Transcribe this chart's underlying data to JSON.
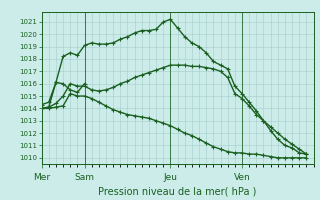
{
  "bg_color": "#ccecea",
  "grid_color": "#a4ccc8",
  "line_color": "#1a6020",
  "title": "Pression niveau de la mer( hPa )",
  "ymin": 1009.5,
  "ymax": 1021.8,
  "ytick_vals": [
    1010,
    1011,
    1012,
    1013,
    1014,
    1015,
    1016,
    1017,
    1018,
    1019,
    1020,
    1021
  ],
  "day_labels": [
    "Mer",
    "Sam",
    "Jeu",
    "Ven"
  ],
  "day_positions": [
    0,
    3,
    9,
    14
  ],
  "xmin": 0,
  "xmax": 19,
  "curve1_x": [
    0,
    0.5,
    1,
    1.5,
    2,
    2.5,
    3,
    3.5,
    4,
    4.5,
    5,
    5.5,
    6,
    6.5,
    7,
    7.5,
    8,
    8.5,
    9,
    9.5,
    10,
    10.5,
    11,
    11.5,
    12,
    12.5,
    13,
    13.5,
    14,
    14.5,
    15,
    15.5,
    16,
    16.5,
    17,
    17.5,
    18,
    18.5
  ],
  "curve1_y": [
    1014.0,
    1014.1,
    1016.1,
    1018.2,
    1018.5,
    1018.3,
    1019.1,
    1019.3,
    1019.2,
    1019.2,
    1019.3,
    1019.6,
    1019.8,
    1020.1,
    1020.3,
    1020.3,
    1020.4,
    1021.0,
    1021.2,
    1020.5,
    1019.8,
    1019.3,
    1019.0,
    1018.5,
    1017.8,
    1017.5,
    1017.2,
    1015.8,
    1015.2,
    1014.5,
    1013.8,
    1013.0,
    1012.2,
    1011.5,
    1011.0,
    1010.8,
    1010.4,
    1010.3
  ],
  "curve2_x": [
    0,
    0.5,
    1,
    1.5,
    2,
    2.5,
    3,
    3.5,
    4,
    4.5,
    5,
    5.5,
    6,
    6.5,
    7,
    7.5,
    8,
    8.5,
    9,
    9.5,
    10,
    10.5,
    11,
    11.5,
    12,
    12.5,
    13,
    13.5,
    14,
    14.5,
    15,
    15.5,
    16,
    16.5,
    17,
    17.5,
    18,
    18.5
  ],
  "curve2_y": [
    1014.0,
    1014.1,
    1014.4,
    1015.0,
    1016.0,
    1015.8,
    1015.8,
    1015.5,
    1015.4,
    1015.5,
    1015.7,
    1016.0,
    1016.2,
    1016.5,
    1016.7,
    1016.9,
    1017.1,
    1017.3,
    1017.5,
    1017.5,
    1017.5,
    1017.4,
    1017.4,
    1017.3,
    1017.2,
    1017.0,
    1016.5,
    1015.2,
    1014.8,
    1014.2,
    1013.5,
    1013.0,
    1012.5,
    1012.0,
    1011.5,
    1011.1,
    1010.7,
    1010.3
  ],
  "curve3_x": [
    0,
    0.5,
    1,
    1.5,
    2,
    2.5,
    3,
    3.5,
    4,
    4.5,
    5,
    5.5,
    6,
    6.5,
    7,
    7.5,
    8,
    8.5,
    9,
    9.5,
    10,
    10.5,
    11,
    11.5,
    12,
    12.5,
    13,
    13.5,
    14,
    14.5,
    15,
    15.5,
    16,
    16.5,
    17,
    17.5,
    18,
    18.5
  ],
  "curve3_y": [
    1014.0,
    1014.0,
    1014.1,
    1014.2,
    1015.2,
    1015.0,
    1015.0,
    1014.8,
    1014.5,
    1014.2,
    1013.9,
    1013.7,
    1013.5,
    1013.4,
    1013.3,
    1013.2,
    1013.0,
    1012.8,
    1012.6,
    1012.3,
    1012.0,
    1011.8,
    1011.5,
    1011.2,
    1010.9,
    1010.7,
    1010.5,
    1010.4,
    1010.4,
    1010.3,
    1010.3,
    1010.2,
    1010.1,
    1010.0,
    1010.0,
    1010.0,
    1010.0,
    1010.0
  ],
  "curve4_x": [
    0,
    0.5,
    1,
    1.5,
    2,
    2.5,
    3
  ],
  "curve4_y": [
    1014.3,
    1014.5,
    1016.1,
    1016.0,
    1015.5,
    1015.3,
    1016.0
  ]
}
